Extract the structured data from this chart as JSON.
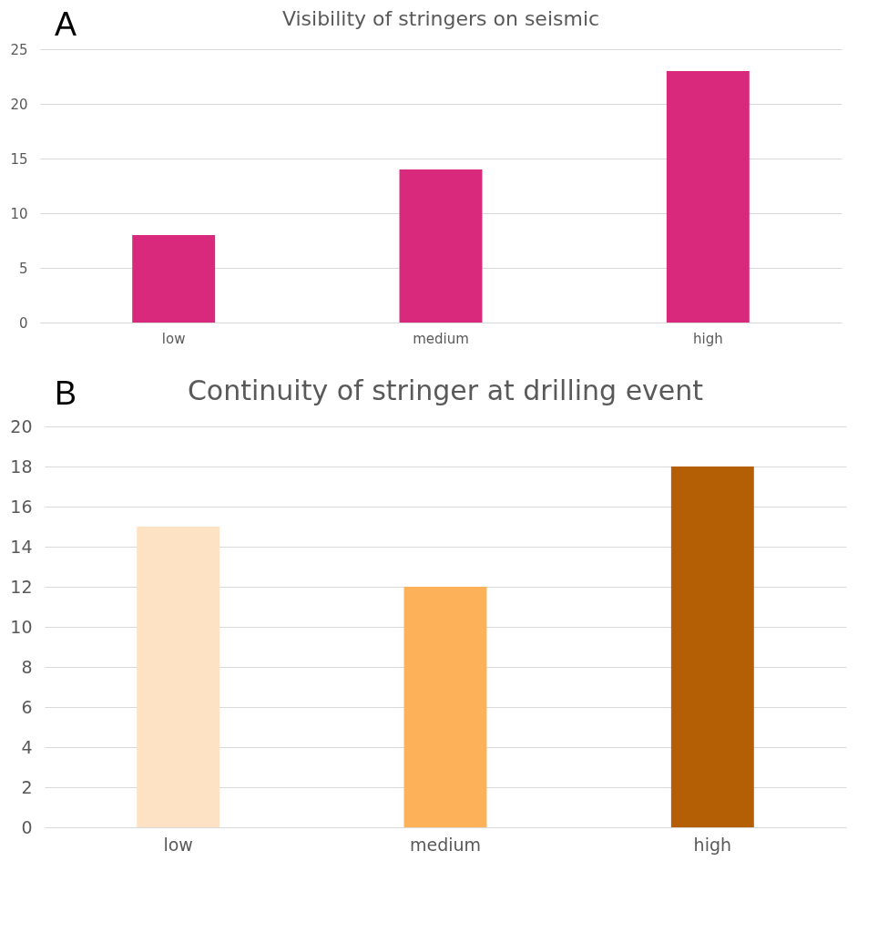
{
  "chart_data": [
    {
      "type": "bar",
      "title": "Visibility of stringers on seismic",
      "annotations": [
        "A"
      ],
      "categories": [
        "low",
        "medium",
        "high"
      ],
      "values": [
        8,
        14,
        23
      ],
      "colors": [
        "#d9297c",
        "#d9297c",
        "#d9297c"
      ],
      "ylim": [
        0,
        25
      ],
      "yticks": [
        0,
        5,
        10,
        15,
        20,
        25
      ],
      "grid": "y"
    },
    {
      "type": "bar",
      "title": "Continuity of stringer at drilling event",
      "annotations": [
        "B"
      ],
      "categories": [
        "low",
        "medium",
        "high"
      ],
      "values": [
        15,
        12,
        18
      ],
      "colors": [
        "#fde3c4",
        "#fdb25a",
        "#b45f06"
      ],
      "ylim": [
        0,
        20
      ],
      "yticks": [
        0,
        2,
        4,
        6,
        8,
        10,
        12,
        14,
        16,
        18,
        20
      ],
      "grid": "y"
    }
  ]
}
